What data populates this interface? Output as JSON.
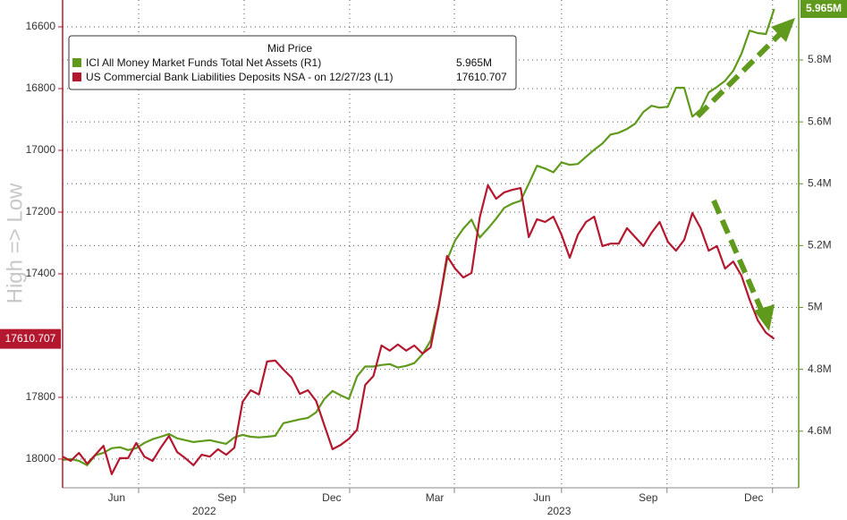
{
  "chart_data": {
    "type": "line",
    "y_axis_note": "High => Low",
    "legend_title": "Mid Price",
    "x": [
      0,
      1,
      2,
      3,
      4,
      5,
      6,
      7,
      8,
      9,
      10,
      11,
      12,
      13,
      14,
      15,
      16,
      17,
      18,
      19,
      20,
      21,
      22,
      23,
      24,
      25,
      26,
      27,
      28,
      29,
      30,
      31,
      32,
      33,
      34,
      35,
      36,
      37,
      38,
      39,
      40,
      41,
      42,
      43,
      44,
      45,
      46,
      47,
      48,
      49,
      50,
      51,
      52,
      53,
      54,
      55,
      56,
      57,
      58,
      59,
      60,
      61,
      62,
      63,
      64,
      65,
      66,
      67,
      68,
      69,
      70,
      71,
      72,
      73,
      74,
      75,
      76,
      77,
      78,
      79,
      80,
      81,
      82,
      83,
      84,
      85,
      86,
      87
    ],
    "xlim": [
      0,
      90
    ],
    "xticks": [
      {
        "value": 6.6,
        "label": "Jun"
      },
      {
        "value": 20.1,
        "label": "Sep"
      },
      {
        "value": 32.9,
        "label": "Dec"
      },
      {
        "value": 45.5,
        "label": "Mar"
      },
      {
        "value": 58.6,
        "label": "Jun"
      },
      {
        "value": 71.6,
        "label": "Sep"
      },
      {
        "value": 84.5,
        "label": "Dec"
      }
    ],
    "xticks_year": [
      {
        "value": 17.3,
        "label": "2022"
      },
      {
        "value": 60.7,
        "label": "2023"
      }
    ],
    "xgrid": [
      9.3,
      22.2,
      35.1,
      47.9,
      61.0,
      73.9,
      86.8
    ],
    "ylim": [
      18093,
      16513
    ],
    "yticks": [
      16600,
      16800,
      17000,
      17200,
      17400,
      17800,
      18000
    ],
    "y2lim": [
      4.417,
      5.994
    ],
    "y2ticks": [
      {
        "value": 4.6,
        "label": "4.6M"
      },
      {
        "value": 4.8,
        "label": "4.8M"
      },
      {
        "value": 5,
        "label": "5M"
      },
      {
        "value": 5.2,
        "label": "5.2M"
      },
      {
        "value": 5.4,
        "label": "5.4M"
      },
      {
        "value": 5.6,
        "label": "5.6M"
      },
      {
        "value": 5.8,
        "label": "5.8M"
      }
    ],
    "grid": true,
    "series": [
      {
        "name": "ICI All Money Market Funds Total Net Assets  (R1)",
        "color": "#5f9a1c",
        "axis": "y2",
        "last_value_label": "5.965M",
        "values": [
          4.507,
          4.51,
          4.504,
          4.49,
          4.522,
          4.53,
          4.545,
          4.548,
          4.539,
          4.545,
          4.562,
          4.574,
          4.582,
          4.591,
          4.577,
          4.571,
          4.565,
          4.568,
          4.571,
          4.565,
          4.559,
          4.58,
          4.588,
          4.582,
          4.58,
          4.582,
          4.585,
          4.626,
          4.632,
          4.638,
          4.643,
          4.661,
          4.704,
          4.73,
          4.716,
          4.704,
          4.777,
          4.809,
          4.809,
          4.814,
          4.817,
          4.806,
          4.811,
          4.82,
          4.849,
          4.893,
          5.008,
          5.153,
          5.217,
          5.255,
          5.284,
          5.226,
          5.255,
          5.287,
          5.322,
          5.336,
          5.345,
          5.4,
          5.458,
          5.449,
          5.437,
          5.469,
          5.461,
          5.464,
          5.487,
          5.51,
          5.53,
          5.559,
          5.565,
          5.577,
          5.594,
          5.632,
          5.652,
          5.646,
          5.649,
          5.71,
          5.71,
          5.617,
          5.64,
          5.695,
          5.713,
          5.733,
          5.765,
          5.82,
          5.895,
          5.887,
          5.884,
          5.965
        ]
      },
      {
        "name": "US Commercial Bank Liabilities Deposits NSA -  on 12/27/23  (L1)",
        "color": "#b3182f",
        "axis": "y",
        "last_value_label": "17610.707",
        "values": [
          17992,
          18006,
          17980,
          18015,
          17986,
          17957,
          18049,
          17997,
          17997,
          17948,
          17992,
          18006,
          17963,
          17925,
          17977,
          17997,
          18020,
          17986,
          17992,
          17968,
          17986,
          17963,
          17815,
          17777,
          17791,
          17684,
          17681,
          17710,
          17736,
          17789,
          17777,
          17812,
          17890,
          17968,
          17954,
          17934,
          17905,
          17760,
          17731,
          17632,
          17649,
          17629,
          17649,
          17632,
          17658,
          17638,
          17504,
          17342,
          17383,
          17412,
          17397,
          17217,
          17113,
          17157,
          17136,
          17128,
          17122,
          17281,
          17223,
          17232,
          17215,
          17273,
          17348,
          17273,
          17232,
          17215,
          17310,
          17302,
          17302,
          17252,
          17281,
          17310,
          17267,
          17232,
          17296,
          17325,
          17290,
          17203,
          17252,
          17325,
          17310,
          17383,
          17360,
          17406,
          17484,
          17551,
          17591,
          17610.707
        ]
      }
    ]
  }
}
